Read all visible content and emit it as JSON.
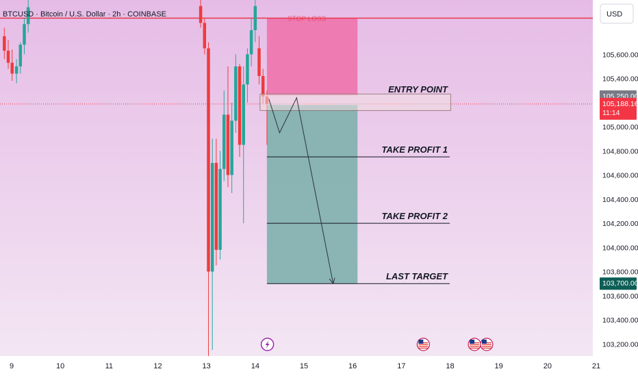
{
  "header": {
    "symbol_title": "BTCUSD · Bitcoin / U.S. Dollar · 2h · COINBASE",
    "currency_button": "USD"
  },
  "colors": {
    "background_top": "#e6bce6",
    "background_bottom": "#f3e6f3",
    "up_candle": "#26a69a",
    "down_candle": "#ef3b3b",
    "stop_zone": "#ee6fa8",
    "target_zone": "#7fb0ad",
    "stop_line": "#e8364a",
    "current_price_badge": "#f23645",
    "target_badge": "#0d5e56",
    "dark_text": "#131722"
  },
  "chart_data": {
    "type": "candlestick",
    "symbol": "BTCUSD",
    "interval": "2h",
    "exchange": "COINBASE",
    "ylim": [
      103100,
      106050
    ],
    "xlim": [
      8.8,
      21
    ],
    "x_ticks": [
      "9",
      "10",
      "11",
      "12",
      "13",
      "14",
      "15",
      "16",
      "17",
      "18",
      "19",
      "20",
      "21"
    ],
    "y_ticks": [
      "105,600.00",
      "105,400.00",
      "105,000.00",
      "104,800.00",
      "104,600.00",
      "104,400.00",
      "104,200.00",
      "104,000.00",
      "103,800.00",
      "103,600.00",
      "103,400.00",
      "103,200.00"
    ],
    "candles": [
      {
        "x": 8.85,
        "o": 105750,
        "h": 105820,
        "l": 105560,
        "c": 105630
      },
      {
        "x": 8.93,
        "o": 105630,
        "h": 105720,
        "l": 105480,
        "c": 105530
      },
      {
        "x": 9.01,
        "o": 105530,
        "h": 105640,
        "l": 105380,
        "c": 105440
      },
      {
        "x": 9.1,
        "o": 105440,
        "h": 105560,
        "l": 105360,
        "c": 105500
      },
      {
        "x": 9.18,
        "o": 105500,
        "h": 105700,
        "l": 105440,
        "c": 105680
      },
      {
        "x": 9.26,
        "o": 105680,
        "h": 105900,
        "l": 105600,
        "c": 105850
      },
      {
        "x": 9.34,
        "o": 105850,
        "h": 106050,
        "l": 105780,
        "c": 105990
      },
      {
        "x": 12.88,
        "o": 106000,
        "h": 106050,
        "l": 105820,
        "c": 105860
      },
      {
        "x": 12.96,
        "o": 105860,
        "h": 105900,
        "l": 105600,
        "c": 105650
      },
      {
        "x": 13.04,
        "o": 105650,
        "h": 105700,
        "l": 103100,
        "c": 103800
      },
      {
        "x": 13.12,
        "o": 103800,
        "h": 104900,
        "l": 103150,
        "c": 104700
      },
      {
        "x": 13.2,
        "o": 104700,
        "h": 104900,
        "l": 103850,
        "c": 103980
      },
      {
        "x": 13.28,
        "o": 103980,
        "h": 104800,
        "l": 103900,
        "c": 104650
      },
      {
        "x": 13.36,
        "o": 104650,
        "h": 105300,
        "l": 104550,
        "c": 105100
      },
      {
        "x": 13.44,
        "o": 105100,
        "h": 105500,
        "l": 104500,
        "c": 104600
      },
      {
        "x": 13.52,
        "o": 104600,
        "h": 105200,
        "l": 104450,
        "c": 105050
      },
      {
        "x": 13.6,
        "o": 105050,
        "h": 105600,
        "l": 104950,
        "c": 105500
      },
      {
        "x": 13.68,
        "o": 105500,
        "h": 105520,
        "l": 104750,
        "c": 104850
      },
      {
        "x": 13.76,
        "o": 104850,
        "h": 105500,
        "l": 104200,
        "c": 105350
      },
      {
        "x": 13.84,
        "o": 105350,
        "h": 105650,
        "l": 105200,
        "c": 105600
      },
      {
        "x": 13.92,
        "o": 105600,
        "h": 105900,
        "l": 105500,
        "c": 105800
      },
      {
        "x": 14.0,
        "o": 105800,
        "h": 106050,
        "l": 105700,
        "c": 106000
      },
      {
        "x": 14.08,
        "o": 105650,
        "h": 105750,
        "l": 105350,
        "c": 105420
      },
      {
        "x": 14.16,
        "o": 105420,
        "h": 105480,
        "l": 105190,
        "c": 105250
      },
      {
        "x": 14.24,
        "o": 105250,
        "h": 105300,
        "l": 104850,
        "c": 105188
      }
    ],
    "stop_loss_price": 105900,
    "entry_price": 105250,
    "current_price": "105,188.16",
    "countdown": "11:14",
    "entry_badge": "105,250.00",
    "last_target_badge": "103,700.00",
    "position": {
      "x_start": 14.24,
      "x_end": 16.1,
      "stop": 105900,
      "entry_top": 105260,
      "entry_bottom": 105180,
      "target": 103700
    },
    "levels": [
      {
        "label": "ENTRY POINT",
        "price": 105250
      },
      {
        "label": "TAKE PROFIT 1",
        "price": 104750
      },
      {
        "label": "TAKE PROFIT 2",
        "price": 104200
      },
      {
        "label": "LAST TARGET",
        "price": 103700
      }
    ],
    "stop_loss_label": "STOP LOSS",
    "path": [
      {
        "x": 14.28,
        "y": 105230
      },
      {
        "x": 14.5,
        "y": 104950
      },
      {
        "x": 14.85,
        "y": 105240
      },
      {
        "x": 15.6,
        "y": 103700
      }
    ],
    "events": [
      {
        "x": 14.25,
        "icon": "lightning-icon"
      },
      {
        "x": 17.45,
        "icon": "us-flag-icon"
      },
      {
        "x": 18.5,
        "icon": "us-flag-icon"
      },
      {
        "x": 18.75,
        "icon": "us-flag-icon"
      }
    ]
  }
}
